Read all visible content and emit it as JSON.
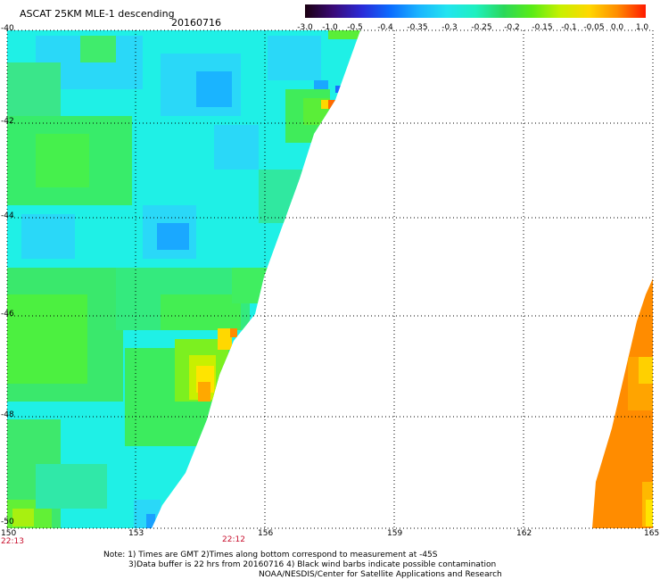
{
  "header": {
    "title": "ASCAT 25KM MLE-1 descending",
    "date": "20160716"
  },
  "colorbar": {
    "labels": [
      "-3.0",
      "-1.0",
      "-0.5",
      "-0.4",
      "-0.35",
      "-0.3",
      "-0.25",
      "-0.2",
      "-0.15",
      "-0.1",
      "-0.05",
      "0.0",
      "1.0"
    ],
    "colors": [
      "#1b0010",
      "#3a0a78",
      "#2a2ad8",
      "#0b6cff",
      "#1ab4ff",
      "#22e4f0",
      "#1ef0c0",
      "#2ad85a",
      "#5aec16",
      "#c8f000",
      "#ffd800",
      "#ff8c00",
      "#ff1a00"
    ]
  },
  "map": {
    "lat_labels": [
      "-40",
      "-42",
      "-44",
      "-46",
      "-48",
      "-50"
    ],
    "lon_labels": [
      "150",
      "153",
      "156",
      "159",
      "162",
      "165"
    ],
    "time_labels": [
      "22:13",
      "22:12"
    ]
  },
  "notes": [
    "Note: 1) Times are GMT 2)Times along bottom correspond to measurement at -45S",
    "3)Data buffer is 22 hrs from 20160716 4) Black wind barbs indicate possible contamination",
    "NOAA/NESDIS/Center for Satellite Applications and Research"
  ]
}
